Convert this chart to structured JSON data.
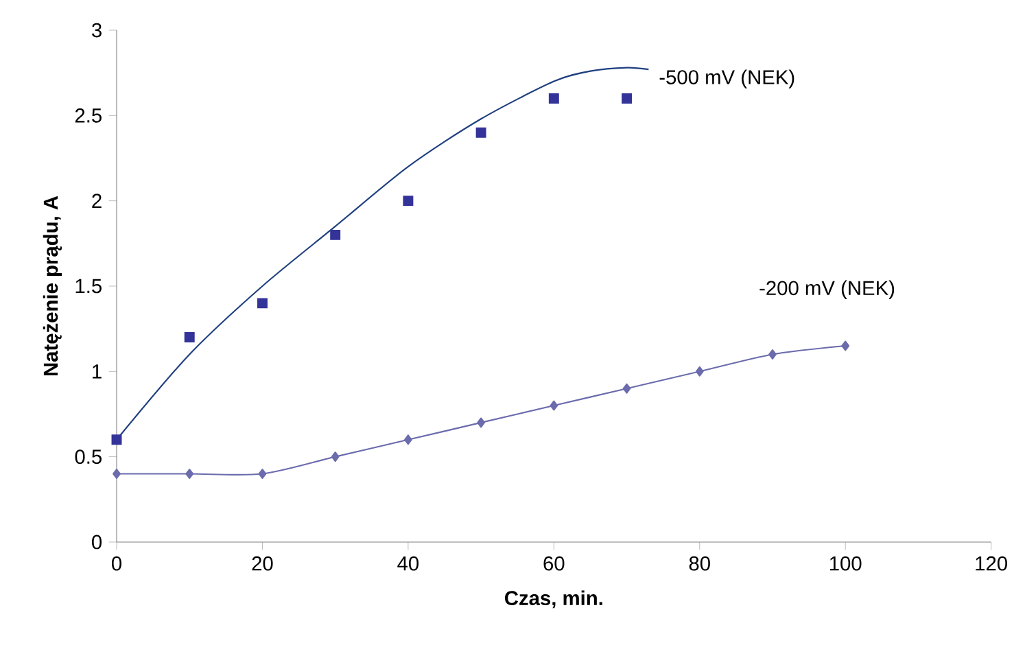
{
  "chart_data": {
    "type": "line",
    "xlabel": "Czas, min.",
    "ylabel": "Natężenie prądu, A",
    "xlim": [
      0,
      120
    ],
    "ylim": [
      0,
      3
    ],
    "xticks": [
      0,
      20,
      40,
      60,
      80,
      100,
      120
    ],
    "yticks": [
      0,
      0.5,
      1,
      1.5,
      2,
      2.5,
      3
    ],
    "series": [
      {
        "type": "scatter",
        "name": "-500 mV (NEK)",
        "color": "#333399",
        "marker": "square",
        "x": [
          0,
          10,
          20,
          30,
          40,
          50,
          60,
          70
        ],
        "values": [
          0.6,
          1.2,
          1.4,
          1.8,
          2.0,
          2.4,
          2.6,
          2.6
        ]
      },
      {
        "color": "#1f3f7f",
        "marker": "none",
        "x": [
          0,
          10,
          20,
          30,
          40,
          50,
          60,
          65,
          70,
          73
        ],
        "values": [
          0.6,
          1.1,
          1.5,
          1.85,
          2.2,
          2.48,
          2.7,
          2.76,
          2.78,
          2.77
        ]
      },
      {
        "name": "-200 mV (NEK)",
        "color": "#6b6bad",
        "marker": "diamond",
        "x": [
          0,
          10,
          20,
          30,
          40,
          50,
          60,
          70,
          80,
          90,
          100
        ],
        "values": [
          0.4,
          0.4,
          0.4,
          0.5,
          0.6,
          0.7,
          0.8,
          0.9,
          1.0,
          1.1,
          1.15
        ]
      }
    ]
  }
}
